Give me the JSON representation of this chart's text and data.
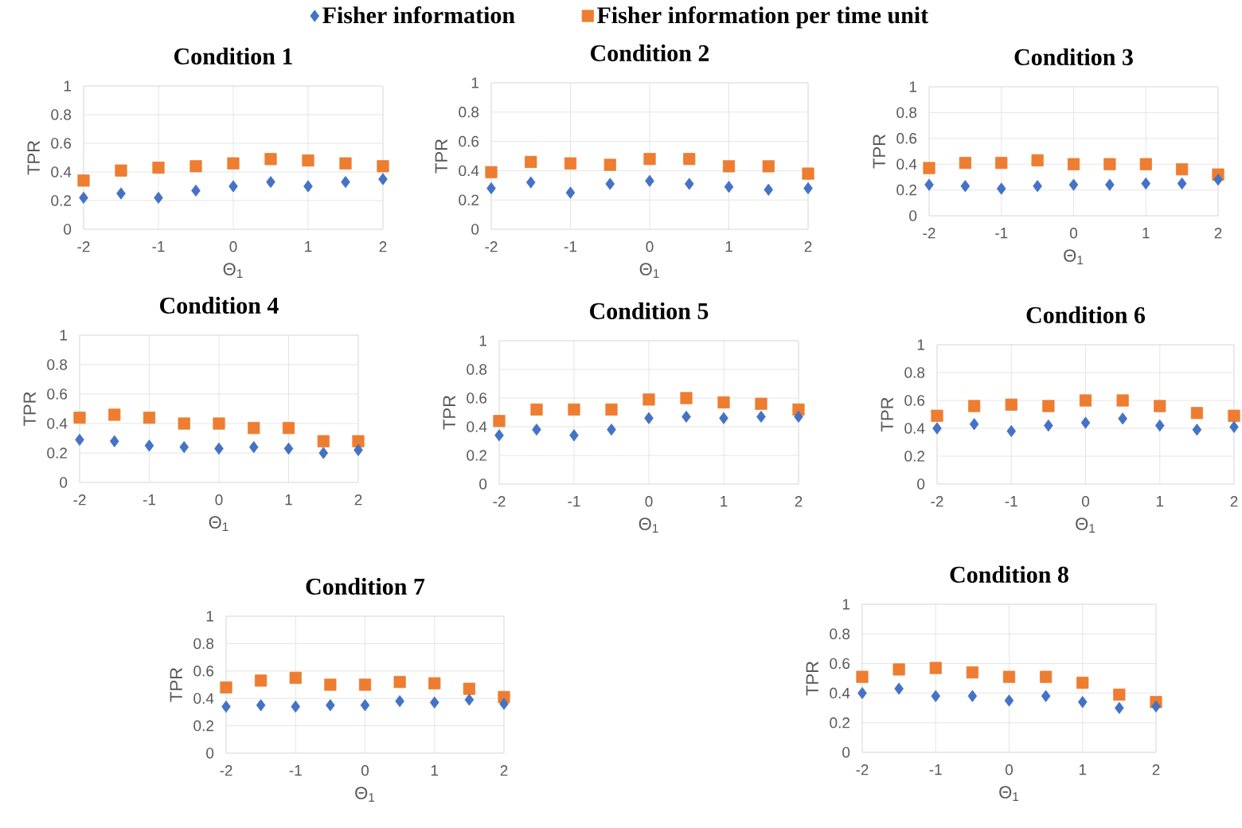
{
  "chart_data": [
    {
      "type": "scatter",
      "title": "Condition 1",
      "xlabel": "Θ$_{1}$",
      "ylabel": "TPR",
      "x": [
        -2,
        -1.5,
        -1,
        -0.5,
        0,
        0.5,
        1,
        1.5,
        2
      ],
      "xlim": [
        -2,
        2
      ],
      "ylim": [
        0,
        1
      ],
      "xticks": [
        -2,
        -1,
        0,
        1,
        2
      ],
      "yticks": [
        0,
        0.2,
        0.4,
        0.6,
        0.8,
        1
      ],
      "grid": true,
      "legend": "top",
      "series": [
        {
          "name": "Fisher information",
          "color": "#4472c4",
          "marker": "diamond",
          "values": [
            0.22,
            0.25,
            0.22,
            0.27,
            0.3,
            0.33,
            0.3,
            0.33,
            0.35
          ]
        },
        {
          "name": "Fisher information per time unit",
          "color": "#ed7d31",
          "marker": "square",
          "values": [
            0.34,
            0.41,
            0.43,
            0.44,
            0.46,
            0.49,
            0.48,
            0.46,
            0.44
          ]
        }
      ]
    },
    {
      "type": "scatter",
      "title": "Condition 2",
      "xlabel": "Θ$_{1}$",
      "ylabel": "TPR",
      "x": [
        -2,
        -1.5,
        -1,
        -0.5,
        0,
        0.5,
        1,
        1.5,
        2
      ],
      "xlim": [
        -2,
        2
      ],
      "ylim": [
        0,
        1
      ],
      "xticks": [
        -2,
        -1,
        0,
        1,
        2
      ],
      "yticks": [
        0,
        0.2,
        0.4,
        0.6,
        0.8,
        1
      ],
      "grid": true,
      "series": [
        {
          "color": "#4472c4",
          "marker": "diamond",
          "values": [
            0.28,
            0.32,
            0.25,
            0.31,
            0.33,
            0.31,
            0.29,
            0.27,
            0.28
          ]
        },
        {
          "color": "#ed7d31",
          "marker": "square",
          "values": [
            0.39,
            0.46,
            0.45,
            0.44,
            0.48,
            0.48,
            0.43,
            0.43,
            0.38
          ]
        }
      ]
    },
    {
      "type": "scatter",
      "title": "Condition 3",
      "xlabel": "Θ$_{1}$",
      "ylabel": "TPR",
      "x": [
        -2,
        -1.5,
        -1,
        -0.5,
        0,
        0.5,
        1,
        1.5,
        2
      ],
      "xlim": [
        -2,
        2
      ],
      "ylim": [
        0,
        1
      ],
      "xticks": [
        -2,
        -1,
        0,
        1,
        2
      ],
      "yticks": [
        0,
        0.2,
        0.4,
        0.6,
        0.8,
        1
      ],
      "grid": true,
      "series": [
        {
          "color": "#4472c4",
          "marker": "diamond",
          "values": [
            0.24,
            0.23,
            0.21,
            0.23,
            0.24,
            0.24,
            0.25,
            0.25,
            0.28
          ]
        },
        {
          "color": "#ed7d31",
          "marker": "square",
          "values": [
            0.37,
            0.41,
            0.41,
            0.43,
            0.4,
            0.4,
            0.4,
            0.36,
            0.32
          ]
        }
      ]
    },
    {
      "type": "scatter",
      "title": "Condition 4",
      "xlabel": "Θ$_{1}$",
      "ylabel": "TPR",
      "x": [
        -2,
        -1.5,
        -1,
        -0.5,
        0,
        0.5,
        1,
        1.5,
        2
      ],
      "xlim": [
        -2,
        2
      ],
      "ylim": [
        0,
        1
      ],
      "xticks": [
        -2,
        -1,
        0,
        1,
        2
      ],
      "yticks": [
        0,
        0.2,
        0.4,
        0.6,
        0.8,
        1
      ],
      "grid": true,
      "series": [
        {
          "color": "#4472c4",
          "marker": "diamond",
          "values": [
            0.29,
            0.28,
            0.25,
            0.24,
            0.23,
            0.24,
            0.23,
            0.2,
            0.22
          ]
        },
        {
          "color": "#ed7d31",
          "marker": "square",
          "values": [
            0.44,
            0.46,
            0.44,
            0.4,
            0.4,
            0.37,
            0.37,
            0.28,
            0.28
          ]
        }
      ]
    },
    {
      "type": "scatter",
      "title": "Condition 5",
      "xlabel": "Θ$_{1}$",
      "ylabel": "TPR",
      "x": [
        -2,
        -1.5,
        -1,
        -0.5,
        0,
        0.5,
        1,
        1.5,
        2
      ],
      "xlim": [
        -2,
        2
      ],
      "ylim": [
        0,
        1
      ],
      "xticks": [
        -2,
        -1,
        0,
        1,
        2
      ],
      "yticks": [
        0,
        0.2,
        0.4,
        0.6,
        0.8,
        1
      ],
      "grid": true,
      "series": [
        {
          "color": "#4472c4",
          "marker": "diamond",
          "values": [
            0.34,
            0.38,
            0.34,
            0.38,
            0.46,
            0.47,
            0.46,
            0.47,
            0.47
          ]
        },
        {
          "color": "#ed7d31",
          "marker": "square",
          "values": [
            0.44,
            0.52,
            0.52,
            0.52,
            0.59,
            0.6,
            0.57,
            0.56,
            0.52
          ]
        }
      ]
    },
    {
      "type": "scatter",
      "title": "Condition 6",
      "xlabel": "Θ$_{1}$",
      "ylabel": "TPR",
      "x": [
        -2,
        -1.5,
        -1,
        -0.5,
        0,
        0.5,
        1,
        1.5,
        2
      ],
      "xlim": [
        -2,
        2
      ],
      "ylim": [
        0,
        1
      ],
      "xticks": [
        -2,
        -1,
        0,
        1,
        2
      ],
      "yticks": [
        0,
        0.2,
        0.4,
        0.6,
        0.8,
        1
      ],
      "grid": true,
      "series": [
        {
          "color": "#4472c4",
          "marker": "diamond",
          "values": [
            0.4,
            0.43,
            0.38,
            0.42,
            0.44,
            0.47,
            0.42,
            0.39,
            0.41
          ]
        },
        {
          "color": "#ed7d31",
          "marker": "square",
          "values": [
            0.49,
            0.56,
            0.57,
            0.56,
            0.6,
            0.6,
            0.56,
            0.51,
            0.49
          ]
        }
      ]
    },
    {
      "type": "scatter",
      "title": "Condition 7",
      "xlabel": "Θ$_{1}$",
      "ylabel": "TPR",
      "x": [
        -2,
        -1.5,
        -1,
        -0.5,
        0,
        0.5,
        1,
        1.5,
        2
      ],
      "xlim": [
        -2,
        2
      ],
      "ylim": [
        0,
        1
      ],
      "xticks": [
        -2,
        -1,
        0,
        1,
        2
      ],
      "yticks": [
        0,
        0.2,
        0.4,
        0.6,
        0.8,
        1
      ],
      "grid": true,
      "series": [
        {
          "color": "#4472c4",
          "marker": "diamond",
          "values": [
            0.34,
            0.35,
            0.34,
            0.35,
            0.35,
            0.38,
            0.37,
            0.39,
            0.36
          ]
        },
        {
          "color": "#ed7d31",
          "marker": "square",
          "values": [
            0.48,
            0.53,
            0.55,
            0.5,
            0.5,
            0.52,
            0.51,
            0.47,
            0.41
          ]
        }
      ]
    },
    {
      "type": "scatter",
      "title": "Condition 8",
      "xlabel": "Θ$_{1}$",
      "ylabel": "TPR",
      "x": [
        -2,
        -1.5,
        -1,
        -0.5,
        0,
        0.5,
        1,
        1.5,
        2
      ],
      "xlim": [
        -2,
        2
      ],
      "ylim": [
        0,
        1
      ],
      "xticks": [
        -2,
        -1,
        0,
        1,
        2
      ],
      "yticks": [
        0,
        0.2,
        0.4,
        0.6,
        0.8,
        1
      ],
      "grid": true,
      "series": [
        {
          "color": "#4472c4",
          "marker": "diamond",
          "values": [
            0.4,
            0.43,
            0.38,
            0.38,
            0.35,
            0.38,
            0.34,
            0.3,
            0.31
          ]
        },
        {
          "color": "#ed7d31",
          "marker": "square",
          "values": [
            0.51,
            0.56,
            0.57,
            0.54,
            0.51,
            0.51,
            0.47,
            0.39,
            0.34
          ]
        }
      ]
    }
  ]
}
